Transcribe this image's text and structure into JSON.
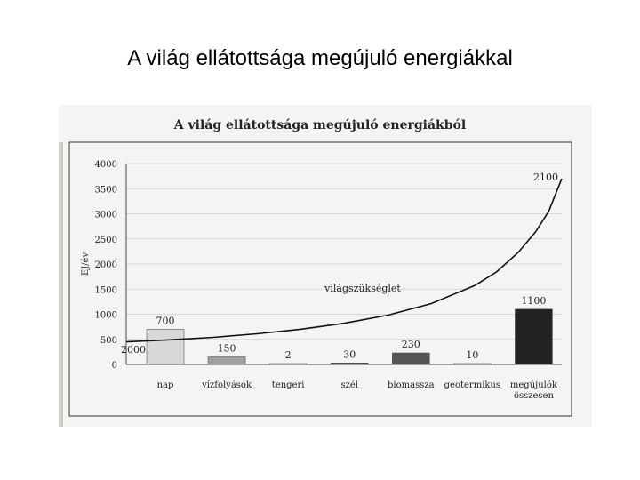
{
  "slide": {
    "title": "A világ ellátottsága megújuló energiákkal"
  },
  "chart_data": {
    "type": "bar",
    "title": "A világ ellátottsága megújuló energiákból",
    "ylabel": "EJ/év",
    "xlabel": "",
    "ylim": [
      0,
      4000
    ],
    "yticks": [
      0,
      500,
      1000,
      1500,
      2000,
      2500,
      3000,
      3500,
      4000
    ],
    "grid": true,
    "categories": [
      "nap",
      "vízfolyások",
      "tengeri",
      "szél",
      "biomassza",
      "geotermikus",
      "megújulók összesen"
    ],
    "category_lines": [
      [
        "nap"
      ],
      [
        "vízfolyások"
      ],
      [
        "tengeri"
      ],
      [
        "szél"
      ],
      [
        "biomassza"
      ],
      [
        "geotermikus"
      ],
      [
        "megújulók",
        "összesen"
      ]
    ],
    "values": [
      700,
      150,
      2,
      30,
      230,
      10,
      1100
    ],
    "value_labels": [
      "700",
      "150",
      "2",
      "30",
      "230",
      "10",
      "1100"
    ],
    "bar_colors": [
      "#d8d8d8",
      "#a0a0a0",
      "#888888",
      "#333333",
      "#555555",
      "#777777",
      "#222222"
    ],
    "curve": {
      "label": "világszükséglet",
      "start_label": "2000",
      "end_label": "2100",
      "x": [
        0,
        0.1,
        0.2,
        0.3,
        0.4,
        0.5,
        0.6,
        0.7,
        0.8,
        0.85,
        0.9,
        0.94,
        0.97,
        1.0
      ],
      "y": [
        450,
        490,
        540,
        610,
        700,
        820,
        980,
        1210,
        1570,
        1840,
        2230,
        2640,
        3050,
        3700
      ]
    }
  }
}
